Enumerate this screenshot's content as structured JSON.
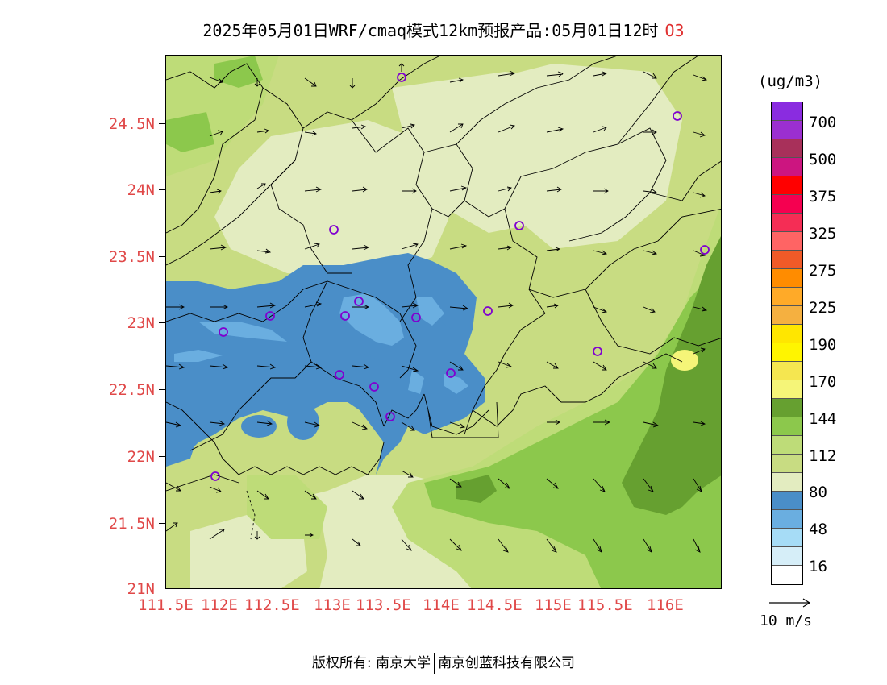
{
  "title": {
    "text": "2025年05月01日WRF/cmaq模式12km预报产品:05月01日12时",
    "pollutant": "O3"
  },
  "map": {
    "lat_labels": [
      "24.5N",
      "24N",
      "23.5N",
      "23N",
      "22.5N",
      "22N",
      "21.5N",
      "21N"
    ],
    "lon_labels": [
      "111.5E",
      "112E",
      "112.5E",
      "113E",
      "113.5E",
      "114E",
      "114.5E",
      "115E",
      "115.5E",
      "116E"
    ],
    "lon_range": [
      111.5,
      116.5
    ],
    "lat_range": [
      21.0,
      25.0
    ],
    "station_marker_color": "#8000d0"
  },
  "colorbar": {
    "unit": "(ug/m3)",
    "colors": [
      "#8a2ce0",
      "#9b2fd0",
      "#a8305a",
      "#cc1580",
      "#ff0000",
      "#f50050",
      "#f52d55",
      "#ff6464",
      "#f05a28",
      "#ff8c00",
      "#ffaa28",
      "#f5b040",
      "#ffe600",
      "#fff500",
      "#f5e650",
      "#f5f578",
      "#66a030",
      "#8cc84c",
      "#bedc78",
      "#c8dc82",
      "#e3ecc0",
      "#4a8ec8",
      "#6aaee0",
      "#a6dcf6",
      "#d6eef8",
      "#ffffff"
    ],
    "labels": [
      "700",
      "500",
      "375",
      "325",
      "275",
      "225",
      "190",
      "170",
      "144",
      "112",
      "80",
      "48",
      "16"
    ]
  },
  "wind_legend": {
    "label": "10 m/s"
  },
  "copyright": {
    "left": "版权所有: 南京大学",
    "right": "南京创蓝科技有限公司"
  }
}
